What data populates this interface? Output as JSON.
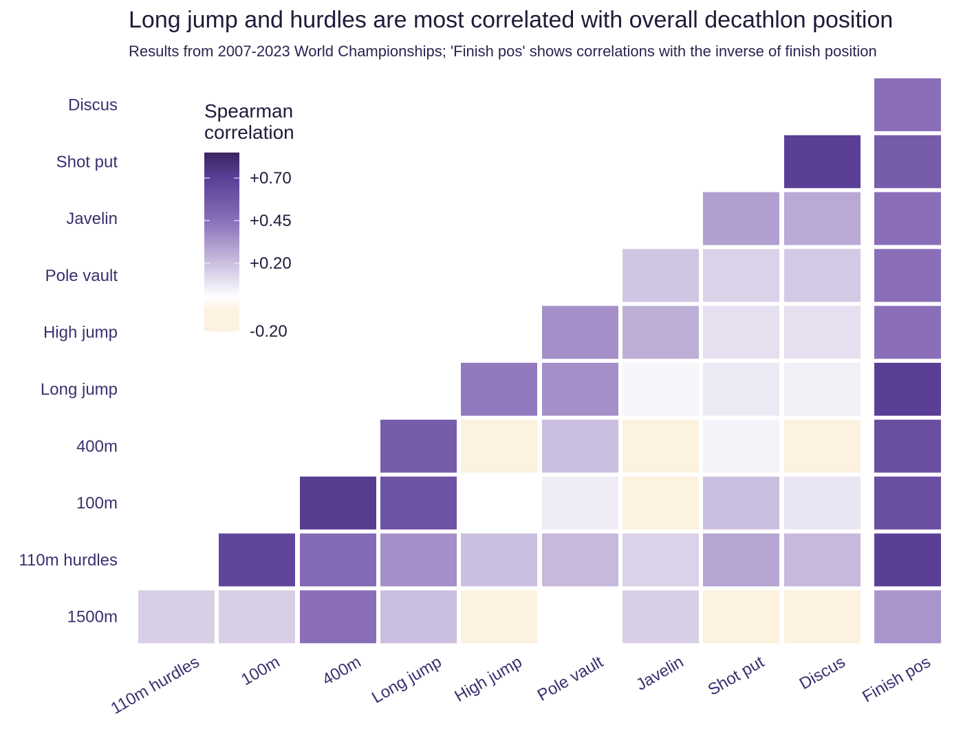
{
  "title": "Long jump and hurdles are most correlated with overall decathlon position",
  "subtitle": "Results from 2007-2023 World Championships; 'Finish pos' shows correlations with the inverse of finish position",
  "chart_data": {
    "type": "heatmap",
    "x_categories": [
      "110m hurdles",
      "100m",
      "400m",
      "Long jump",
      "High jump",
      "Pole vault",
      "Javelin",
      "Shot put",
      "Discus",
      "Finish pos"
    ],
    "y_categories": [
      "Discus",
      "Shot put",
      "Javelin",
      "Pole vault",
      "High jump",
      "Long jump",
      "400m",
      "100m",
      "110m hurdles",
      "1500m"
    ],
    "cells": [
      {
        "x": "Finish pos",
        "y": "Discus",
        "value": 0.45
      },
      {
        "x": "Discus",
        "y": "Shot put",
        "value": 0.7
      },
      {
        "x": "Finish pos",
        "y": "Shot put",
        "value": 0.55
      },
      {
        "x": "Shot put",
        "y": "Javelin",
        "value": 0.3
      },
      {
        "x": "Discus",
        "y": "Javelin",
        "value": 0.27
      },
      {
        "x": "Finish pos",
        "y": "Javelin",
        "value": 0.45
      },
      {
        "x": "Javelin",
        "y": "Pole vault",
        "value": 0.18
      },
      {
        "x": "Shot put",
        "y": "Pole vault",
        "value": 0.14
      },
      {
        "x": "Discus",
        "y": "Pole vault",
        "value": 0.17
      },
      {
        "x": "Finish pos",
        "y": "Pole vault",
        "value": 0.45
      },
      {
        "x": "Pole vault",
        "y": "High jump",
        "value": 0.35
      },
      {
        "x": "Javelin",
        "y": "High jump",
        "value": 0.25
      },
      {
        "x": "Shot put",
        "y": "High jump",
        "value": 0.1
      },
      {
        "x": "Discus",
        "y": "High jump",
        "value": 0.1
      },
      {
        "x": "Finish pos",
        "y": "High jump",
        "value": 0.45
      },
      {
        "x": "High jump",
        "y": "Long jump",
        "value": 0.42
      },
      {
        "x": "Pole vault",
        "y": "Long jump",
        "value": 0.35
      },
      {
        "x": "Javelin",
        "y": "Long jump",
        "value": 0.03
      },
      {
        "x": "Shot put",
        "y": "Long jump",
        "value": 0.07
      },
      {
        "x": "Discus",
        "y": "Long jump",
        "value": 0.05
      },
      {
        "x": "Finish pos",
        "y": "Long jump",
        "value": 0.7
      },
      {
        "x": "Long jump",
        "y": "400m",
        "value": 0.55
      },
      {
        "x": "High jump",
        "y": "400m",
        "value": -0.08
      },
      {
        "x": "Pole vault",
        "y": "400m",
        "value": 0.2
      },
      {
        "x": "Javelin",
        "y": "400m",
        "value": -0.12
      },
      {
        "x": "Shot put",
        "y": "400m",
        "value": 0.04
      },
      {
        "x": "Discus",
        "y": "400m",
        "value": -0.14
      },
      {
        "x": "Finish pos",
        "y": "400m",
        "value": 0.62
      },
      {
        "x": "400m",
        "y": "100m",
        "value": 0.72
      },
      {
        "x": "Long jump",
        "y": "100m",
        "value": 0.6
      },
      {
        "x": "High jump",
        "y": "100m",
        "value": 0.0
      },
      {
        "x": "Pole vault",
        "y": "100m",
        "value": 0.06
      },
      {
        "x": "Javelin",
        "y": "100m",
        "value": -0.18
      },
      {
        "x": "Shot put",
        "y": "100m",
        "value": 0.2
      },
      {
        "x": "Discus",
        "y": "100m",
        "value": 0.08
      },
      {
        "x": "Finish pos",
        "y": "100m",
        "value": 0.62
      },
      {
        "x": "100m",
        "y": "110m hurdles",
        "value": 0.67
      },
      {
        "x": "400m",
        "y": "110m hurdles",
        "value": 0.48
      },
      {
        "x": "Long jump",
        "y": "110m hurdles",
        "value": 0.35
      },
      {
        "x": "High jump",
        "y": "110m hurdles",
        "value": 0.2
      },
      {
        "x": "Pole vault",
        "y": "110m hurdles",
        "value": 0.22
      },
      {
        "x": "Javelin",
        "y": "110m hurdles",
        "value": 0.14
      },
      {
        "x": "Shot put",
        "y": "110m hurdles",
        "value": 0.28
      },
      {
        "x": "Discus",
        "y": "110m hurdles",
        "value": 0.22
      },
      {
        "x": "Finish pos",
        "y": "110m hurdles",
        "value": 0.7
      },
      {
        "x": "110m hurdles",
        "y": "1500m",
        "value": 0.15
      },
      {
        "x": "100m",
        "y": "1500m",
        "value": 0.15
      },
      {
        "x": "400m",
        "y": "1500m",
        "value": 0.45
      },
      {
        "x": "Long jump",
        "y": "1500m",
        "value": 0.2
      },
      {
        "x": "High jump",
        "y": "1500m",
        "value": -0.14
      },
      {
        "x": "Pole vault",
        "y": "1500m",
        "value": 0.0
      },
      {
        "x": "Javelin",
        "y": "1500m",
        "value": 0.15
      },
      {
        "x": "Shot put",
        "y": "1500m",
        "value": -0.1
      },
      {
        "x": "Discus",
        "y": "1500m",
        "value": -0.16
      },
      {
        "x": "Finish pos",
        "y": "1500m",
        "value": 0.33
      }
    ],
    "legend": {
      "title_lines": [
        "Spearman",
        "correlation"
      ],
      "ticks": [
        {
          "value": 0.7,
          "label": "+0.70"
        },
        {
          "value": 0.45,
          "label": "+0.45"
        },
        {
          "value": 0.2,
          "label": "+0.20"
        },
        {
          "value": -0.2,
          "label": "-0.20"
        }
      ],
      "range": [
        -0.2,
        0.85
      ],
      "placement": "top-left"
    },
    "colors": {
      "negative": "#fdf1df",
      "zero": "#ffffff",
      "mid": "#8a6fb8",
      "high": "#5b3f96",
      "max": "#3a2660"
    },
    "grid": false
  }
}
